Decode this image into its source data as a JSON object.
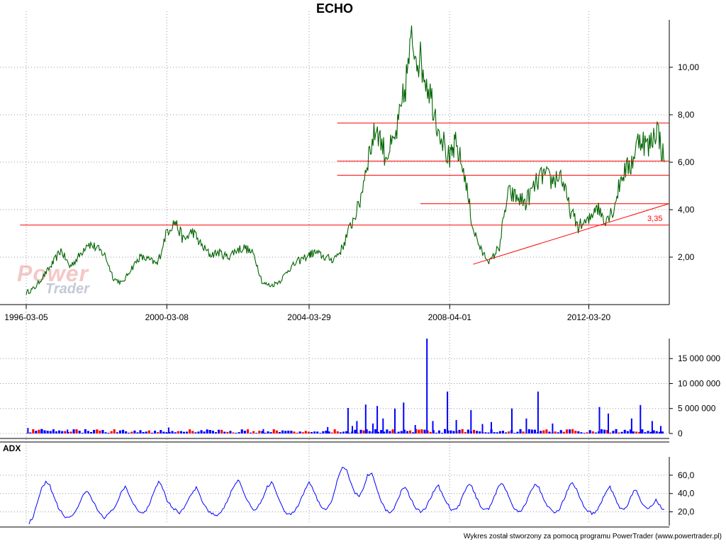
{
  "title": "ECHO",
  "colors": {
    "price_line": "#006400",
    "support_lines": "#ff0000",
    "volume_bars": "#0000ff",
    "volume_down_bars": "#ff0000",
    "adx_line": "#0000ff",
    "grid": "#9a9a9a"
  },
  "watermark": {
    "line1": "Power",
    "line2": "Trader"
  },
  "adx_label": "ADX",
  "footer": "Wykres został stworzony za pomocą programu PowerTrader (www.powertrader.pl)",
  "chart_data": [
    {
      "type": "line",
      "panel": "price",
      "title": "ECHO",
      "x_ticks": [
        "1996-03-05",
        "2000-03-08",
        "2004-03-29",
        "2008-04-01",
        "2012-03-20"
      ],
      "y_ticks": [
        "2,00",
        "4,00",
        "6,00",
        "8,00",
        "10,00"
      ],
      "ylim": [
        0,
        12
      ],
      "grid": true,
      "series": [
        {
          "x": [
            "1996-03-05",
            "1996-06-01",
            "1996-09-01",
            "1996-12-01",
            "1997-03-01",
            "1997-06-01",
            "1997-09-01",
            "1997-12-01",
            "1998-03-01",
            "1998-06-01",
            "1998-09-01",
            "1998-12-01",
            "1999-03-01",
            "1999-06-01",
            "1999-09-01",
            "1999-12-01",
            "2000-03-08",
            "2000-06-01",
            "2000-09-01",
            "2000-12-01",
            "2001-03-01",
            "2001-06-01",
            "2001-09-01",
            "2001-12-01",
            "2002-03-01",
            "2002-06-01",
            "2002-09-01",
            "2002-12-01",
            "2003-03-01",
            "2003-06-01",
            "2003-09-01",
            "2003-12-01",
            "2004-03-29",
            "2004-06-01",
            "2004-09-01",
            "2004-12-01",
            "2005-03-01",
            "2005-06-01",
            "2005-09-01",
            "2005-12-01",
            "2006-03-01",
            "2006-06-01",
            "2006-09-01",
            "2006-12-01",
            "2007-03-01",
            "2007-06-01",
            "2007-09-01",
            "2007-12-01",
            "2008-04-01",
            "2008-06-01",
            "2008-09-01",
            "2008-12-01",
            "2009-03-01",
            "2009-06-01",
            "2009-09-01",
            "2009-12-01",
            "2010-03-01",
            "2010-06-01",
            "2010-09-01",
            "2010-12-01",
            "2011-03-01",
            "2011-06-01",
            "2011-09-01",
            "2011-12-01",
            "2012-03-20",
            "2012-06-01",
            "2012-09-01",
            "2012-12-01",
            "2013-03-01",
            "2013-06-01",
            "2013-09-01",
            "2013-12-01",
            "2014-03-01",
            "2014-05-15"
          ],
          "y": [
            0.5,
            0.7,
            1.2,
            1.7,
            2.3,
            1.6,
            2.0,
            2.6,
            2.4,
            2.1,
            1.1,
            0.9,
            1.5,
            2.0,
            1.9,
            1.7,
            3.1,
            3.5,
            2.7,
            3.1,
            2.5,
            2.1,
            2.2,
            2.0,
            2.3,
            2.4,
            2.1,
            0.9,
            0.8,
            1.0,
            1.5,
            1.8,
            2.1,
            2.2,
            2.0,
            1.9,
            2.3,
            3.3,
            4.2,
            6.2,
            7.5,
            6.3,
            6.8,
            8.5,
            11.1,
            10.3,
            9.1,
            7.6,
            6.0,
            6.8,
            5.5,
            3.2,
            2.2,
            1.8,
            2.5,
            4.7,
            4.5,
            4.3,
            5.0,
            5.5,
            5.2,
            5.5,
            4.0,
            3.3,
            3.5,
            4.2,
            3.6,
            4.0,
            5.5,
            5.9,
            7.1,
            6.6,
            7.5,
            6.0
          ]
        }
      ],
      "lines": [
        {
          "kind": "horizontal",
          "y": 3.35,
          "x_from": "1996-01-01",
          "x_to": "2014-06-30"
        },
        {
          "kind": "horizontal",
          "y": 4.25,
          "x_from": "2007-06-01",
          "x_to": "2014-06-30"
        },
        {
          "kind": "horizontal",
          "y": 5.45,
          "x_from": "2005-01-15",
          "x_to": "2014-06-30"
        },
        {
          "kind": "horizontal",
          "y": 6.05,
          "x_from": "2005-01-15",
          "x_to": "2014-06-30"
        },
        {
          "kind": "horizontal",
          "y": 7.65,
          "x_from": "2005-01-15",
          "x_to": "2014-06-30"
        },
        {
          "kind": "trend",
          "x_from": "2008-12-01",
          "y_from": 1.7,
          "x_to": "2014-06-30",
          "y_to": 4.25
        }
      ],
      "annotations": [
        {
          "text": "3,35",
          "x": "2014-02-01",
          "y": 3.35
        }
      ]
    },
    {
      "type": "bar",
      "panel": "volume",
      "y_ticks": [
        "0",
        "5 000 000",
        "10 000 000",
        "15 000 000"
      ],
      "ylim": [
        0,
        19000000
      ],
      "bar_count": 220,
      "baseline_level": 300000,
      "spikes": [
        {
          "date": "1996-03-15",
          "value": 1100000
        },
        {
          "date": "1996-08-01",
          "value": 900000
        },
        {
          "date": "1997-05-01",
          "value": 800000
        },
        {
          "date": "1998-12-01",
          "value": 700000
        },
        {
          "date": "2000-03-20",
          "value": 1200000
        },
        {
          "date": "2002-12-01",
          "value": 900000
        },
        {
          "date": "2004-10-01",
          "value": 1300000
        },
        {
          "date": "2005-05-01",
          "value": 5100000
        },
        {
          "date": "2005-06-15",
          "value": 1500000
        },
        {
          "date": "2005-08-01",
          "value": 2500000
        },
        {
          "date": "2005-11-01",
          "value": 5800000
        },
        {
          "date": "2006-01-15",
          "value": 2000000
        },
        {
          "date": "2006-03-01",
          "value": 5500000
        },
        {
          "date": "2006-05-01",
          "value": 3000000
        },
        {
          "date": "2006-09-01",
          "value": 5000000
        },
        {
          "date": "2006-12-01",
          "value": 6200000
        },
        {
          "date": "2007-04-01",
          "value": 1700000
        },
        {
          "date": "2007-08-01",
          "value": 19000000
        },
        {
          "date": "2007-10-01",
          "value": 2500000
        },
        {
          "date": "2008-03-01",
          "value": 8400000
        },
        {
          "date": "2008-06-01",
          "value": 2700000
        },
        {
          "date": "2008-11-01",
          "value": 4700000
        },
        {
          "date": "2009-03-01",
          "value": 1900000
        },
        {
          "date": "2009-06-01",
          "value": 2300000
        },
        {
          "date": "2010-01-01",
          "value": 5000000
        },
        {
          "date": "2010-06-01",
          "value": 3000000
        },
        {
          "date": "2010-10-01",
          "value": 8400000
        },
        {
          "date": "2011-03-01",
          "value": 2000000
        },
        {
          "date": "2012-07-01",
          "value": 5300000
        },
        {
          "date": "2012-10-01",
          "value": 4000000
        },
        {
          "date": "2013-06-01",
          "value": 3000000
        },
        {
          "date": "2013-09-01",
          "value": 5700000
        },
        {
          "date": "2014-01-01",
          "value": 2500000
        },
        {
          "date": "2014-04-01",
          "value": 1500000
        }
      ]
    },
    {
      "type": "line",
      "panel": "adx",
      "title": "ADX",
      "y_ticks": [
        "20,0",
        "40,0",
        "60,0"
      ],
      "ylim": [
        5,
        80
      ],
      "values": [
        8,
        14,
        30,
        45,
        52,
        48,
        36,
        24,
        18,
        13,
        15,
        20,
        28,
        38,
        42,
        34,
        25,
        18,
        14,
        17,
        22,
        30,
        40,
        47,
        38,
        29,
        22,
        18,
        22,
        31,
        44,
        54,
        46,
        33,
        26,
        22,
        19,
        24,
        32,
        40,
        46,
        37,
        27,
        21,
        18,
        15,
        19,
        28,
        38,
        48,
        55,
        46,
        34,
        26,
        22,
        27,
        36,
        47,
        53,
        44,
        31,
        22,
        17,
        19,
        24,
        33,
        44,
        52,
        45,
        33,
        25,
        22,
        28,
        40,
        58,
        70,
        66,
        52,
        40,
        38,
        46,
        60,
        63,
        48,
        34,
        24,
        19,
        22,
        30,
        42,
        48,
        38,
        28,
        22,
        20,
        25,
        34,
        44,
        48,
        38,
        29,
        23,
        22,
        28,
        40,
        50,
        47,
        36,
        27,
        22,
        24,
        33,
        44,
        52,
        45,
        34,
        25,
        20,
        22,
        30,
        42,
        50,
        46,
        36,
        27,
        21,
        19,
        24,
        34,
        46,
        52,
        44,
        33,
        24,
        20,
        18,
        22,
        31,
        42,
        47,
        37,
        27,
        22,
        24,
        36,
        45,
        36,
        27,
        22,
        26,
        34,
        26,
        22
      ]
    }
  ]
}
